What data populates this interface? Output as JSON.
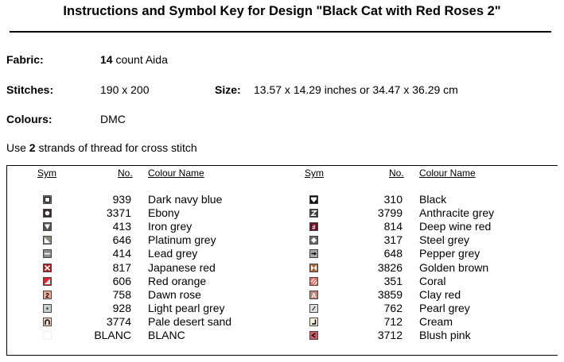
{
  "title": "Instructions and Symbol Key for Design \"Black Cat with Red Roses 2\"",
  "fabric": {
    "label": "Fabric:",
    "count": "14",
    "text": "count Aida"
  },
  "stitches": {
    "label": "Stitches:",
    "value": "190 x 200"
  },
  "size": {
    "label": "Size:",
    "value": "13.57 x 14.29 inches or 34.47 x 36.29 cm"
  },
  "colours": {
    "label": "Colours:",
    "value": "DMC"
  },
  "use_note": {
    "prefix": "Use",
    "strands": "2",
    "suffix": "strands of thread for cross stitch"
  },
  "headers": {
    "sym": "Sym",
    "no": "No.",
    "name": "Colour Name"
  },
  "left_rows": [
    {
      "no": "939",
      "name": "Dark navy blue",
      "bg": "#ffffff",
      "icon": "square-outline-icon",
      "fg": "#000000"
    },
    {
      "no": "3371",
      "name": "Ebony",
      "bg": "#3a2a2a",
      "icon": "circle-icon",
      "fg": "#ffffff"
    },
    {
      "no": "413",
      "name": "Iron grey",
      "bg": "#555555",
      "icon": "triangle-down-icon",
      "fg": "#ffffff"
    },
    {
      "no": "646",
      "name": "Platinum grey",
      "bg": "#8a8a82",
      "icon": "corner-triangle-icon",
      "fg": "#ffffff"
    },
    {
      "no": "414",
      "name": "Lead grey",
      "bg": "#8c8c8c",
      "icon": "minus-icon",
      "fg": "#ffffff"
    },
    {
      "no": "817",
      "name": "Japanese red",
      "bg": "#bb1a1a",
      "icon": "x-icon",
      "fg": "#ffffff"
    },
    {
      "no": "606",
      "name": "Red orange",
      "bg": "#e8202a",
      "icon": "half-triangle-icon",
      "fg": "#ffffff"
    },
    {
      "no": "758",
      "name": "Dawn rose",
      "bg": "#eea891",
      "icon": "digit-two-icon",
      "fg": "#000000"
    },
    {
      "no": "928",
      "name": "Light pearl grey",
      "bg": "#c6cfc9",
      "icon": "dot-icon",
      "fg": "#333333"
    },
    {
      "no": "3774",
      "name": "Pale desert sand",
      "bg": "#f3d9c9",
      "icon": "arch-icon",
      "fg": "#000000"
    },
    {
      "no": "BLANC",
      "name": "BLANC",
      "bg": "#ffffff",
      "icon": "blank-icon",
      "fg": "#ffffff"
    }
  ],
  "right_rows": [
    {
      "no": "310",
      "name": "Black",
      "bg": "#111111",
      "icon": "shield-icon",
      "fg": "#ffffff"
    },
    {
      "no": "3799",
      "name": "Anthracite grey",
      "bg": "#3c3c3c",
      "icon": "letter-z-icon",
      "fg": "#ffffff"
    },
    {
      "no": "814",
      "name": "Deep wine red",
      "bg": "#6b1020",
      "icon": "hash-icon",
      "fg": "#ffffff"
    },
    {
      "no": "317",
      "name": "Steel grey",
      "bg": "#6a6a6a",
      "icon": "diamond-icon",
      "fg": "#ffffff"
    },
    {
      "no": "648",
      "name": "Pepper grey",
      "bg": "#a8a8a0",
      "icon": "arrow-right-icon",
      "fg": "#000000"
    },
    {
      "no": "3826",
      "name": "Golden brown",
      "bg": "#ad6a3a",
      "icon": "bowtie-icon",
      "fg": "#ffffff"
    },
    {
      "no": "351",
      "name": "Coral",
      "bg": "#e86a60",
      "icon": "stripes-icon",
      "fg": "#ffffff"
    },
    {
      "no": "3859",
      "name": "Clay red",
      "bg": "#c88278",
      "icon": "letter-a-icon",
      "fg": "#ffffff"
    },
    {
      "no": "762",
      "name": "Pearl grey",
      "bg": "#e2e2e2",
      "icon": "slash-icon",
      "fg": "#333333"
    },
    {
      "no": "712",
      "name": "Cream",
      "bg": "#fbf3e2",
      "icon": "corner-bracket-icon",
      "fg": "#000000"
    },
    {
      "no": "3712",
      "name": "Blush pink",
      "bg": "#cf5a62",
      "icon": "less-than-icon",
      "fg": "#000000"
    }
  ]
}
